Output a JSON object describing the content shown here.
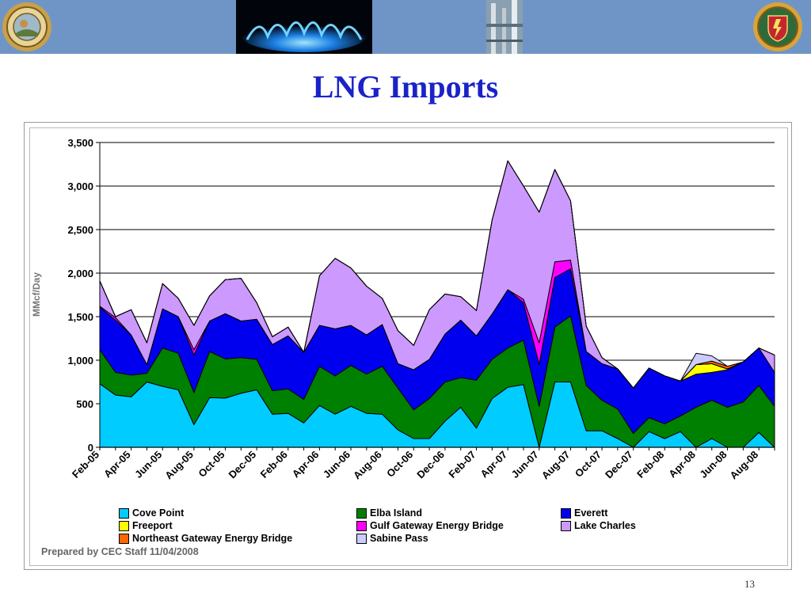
{
  "slide": {
    "title": "LNG Imports",
    "footnote": "Prepared by CEC Staff 11/04/2008",
    "page_number": "13"
  },
  "banner": {
    "color": "#6f95c7",
    "images": [
      "cpuc-seal",
      "gas-flame-photo",
      "gas-plant-photo",
      "cec-seal"
    ]
  },
  "chart_data": {
    "type": "area",
    "stacked": true,
    "title": "",
    "xlabel": "",
    "ylabel": "MMcf/Day",
    "ylim": [
      0,
      3500
    ],
    "yticks": [
      0,
      500,
      1000,
      1500,
      2000,
      2500,
      3000,
      3500
    ],
    "ytick_labels": [
      "0",
      "500",
      "1,000",
      "1,500",
      "2,000",
      "2,500",
      "3,000",
      "3,500"
    ],
    "grid": "horizontal",
    "legend_position": "bottom",
    "x": [
      "Feb-05",
      "Mar-05",
      "Apr-05",
      "May-05",
      "Jun-05",
      "Jul-05",
      "Aug-05",
      "Sep-05",
      "Oct-05",
      "Nov-05",
      "Dec-05",
      "Jan-06",
      "Feb-06",
      "Mar-06",
      "Apr-06",
      "May-06",
      "Jun-06",
      "Jul-06",
      "Aug-06",
      "Sep-06",
      "Oct-06",
      "Nov-06",
      "Dec-06",
      "Jan-07",
      "Feb-07",
      "Mar-07",
      "Apr-07",
      "May-07",
      "Jun-07",
      "Jul-07",
      "Aug-07",
      "Sep-07",
      "Oct-07",
      "Nov-07",
      "Dec-07",
      "Jan-08",
      "Feb-08",
      "Mar-08",
      "Apr-08",
      "May-08",
      "Jun-08",
      "Jul-08",
      "Aug-08",
      "Sep-08"
    ],
    "xtick_labels": [
      "Feb-05",
      "Apr-05",
      "Jun-05",
      "Aug-05",
      "Oct-05",
      "Dec-05",
      "Feb-06",
      "Apr-06",
      "Jun-06",
      "Aug-06",
      "Oct-06",
      "Dec-06",
      "Feb-07",
      "Apr-07",
      "Jun-07",
      "Aug-07",
      "Oct-07",
      "Dec-07",
      "Feb-08",
      "Apr-08",
      "Jun-08",
      "Aug-08"
    ],
    "series": [
      {
        "name": "Cove Point",
        "color": "#00ccff",
        "values": [
          730,
          600,
          580,
          750,
          700,
          660,
          260,
          570,
          565,
          620,
          660,
          380,
          390,
          280,
          480,
          380,
          470,
          390,
          380,
          200,
          100,
          100,
          300,
          460,
          220,
          560,
          690,
          720,
          0,
          750,
          750,
          190,
          190,
          100,
          0,
          180,
          100,
          180,
          0,
          100,
          0,
          0,
          170,
          0
        ]
      },
      {
        "name": "Elba Island",
        "color": "#008000",
        "values": [
          390,
          260,
          250,
          100,
          440,
          420,
          370,
          530,
          450,
          410,
          350,
          270,
          280,
          270,
          450,
          440,
          470,
          450,
          550,
          480,
          330,
          460,
          450,
          340,
          550,
          450,
          450,
          510,
          470,
          630,
          760,
          520,
          350,
          340,
          160,
          160,
          170,
          180,
          460,
          440,
          460,
          520,
          540,
          470
        ]
      },
      {
        "name": "Everett",
        "color": "#0000ee",
        "values": [
          490,
          600,
          460,
          100,
          450,
          420,
          430,
          350,
          520,
          420,
          460,
          530,
          610,
          540,
          470,
          540,
          460,
          450,
          480,
          280,
          460,
          450,
          550,
          660,
          510,
          520,
          670,
          430,
          480,
          570,
          540,
          390,
          420,
          460,
          520,
          570,
          550,
          400,
          380,
          320,
          430,
          460,
          430,
          390
        ]
      },
      {
        "name": "Freeport",
        "color": "#ffff00",
        "values": [
          0,
          0,
          0,
          0,
          0,
          0,
          0,
          0,
          0,
          0,
          0,
          0,
          0,
          0,
          0,
          0,
          0,
          0,
          0,
          0,
          0,
          0,
          0,
          0,
          0,
          0,
          0,
          0,
          0,
          0,
          0,
          0,
          0,
          0,
          0,
          0,
          0,
          0,
          110,
          100,
          10,
          0,
          0,
          0
        ]
      },
      {
        "name": "Gulf Gateway Energy Bridge",
        "color": "#ff00ff",
        "values": [
          10,
          30,
          0,
          0,
          0,
          0,
          60,
          0,
          0,
          0,
          0,
          0,
          0,
          0,
          0,
          0,
          0,
          0,
          0,
          0,
          0,
          0,
          0,
          0,
          0,
          0,
          0,
          40,
          250,
          180,
          100,
          0,
          0,
          0,
          0,
          0,
          0,
          0,
          0,
          0,
          0,
          0,
          0,
          0
        ]
      },
      {
        "name": "Lake Charles",
        "color": "#cc99ff",
        "values": [
          290,
          10,
          290,
          250,
          290,
          210,
          280,
          290,
          390,
          490,
          190,
          90,
          100,
          0,
          570,
          810,
          660,
          560,
          300,
          380,
          280,
          570,
          460,
          270,
          290,
          1080,
          1480,
          1300,
          1500,
          1060,
          680,
          290,
          70,
          0,
          0,
          0,
          0,
          0,
          0,
          0,
          0,
          0,
          0,
          200
        ]
      },
      {
        "name": "Northeast Gateway Energy Bridge",
        "color": "#ff6600",
        "values": [
          0,
          0,
          0,
          0,
          0,
          0,
          0,
          0,
          0,
          0,
          0,
          0,
          0,
          0,
          0,
          0,
          0,
          0,
          0,
          0,
          0,
          0,
          0,
          0,
          0,
          0,
          0,
          0,
          0,
          0,
          0,
          0,
          0,
          0,
          0,
          0,
          0,
          0,
          0,
          30,
          30,
          0,
          0,
          0
        ]
      },
      {
        "name": "Sabine Pass",
        "color": "#ccccff",
        "values": [
          0,
          0,
          0,
          0,
          0,
          0,
          0,
          0,
          0,
          0,
          0,
          0,
          0,
          0,
          0,
          0,
          0,
          0,
          0,
          0,
          0,
          0,
          0,
          0,
          0,
          0,
          0,
          0,
          0,
          0,
          0,
          0,
          0,
          0,
          0,
          0,
          0,
          0,
          130,
          60,
          0,
          0,
          0,
          0
        ]
      }
    ]
  }
}
